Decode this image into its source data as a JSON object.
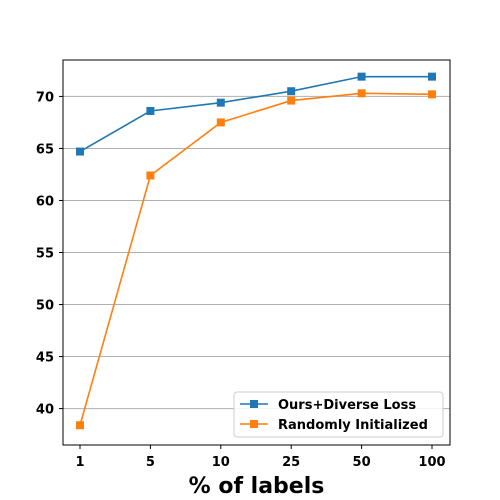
{
  "chart_data": {
    "type": "line",
    "title": "",
    "xlabel": "% of labels",
    "ylabel": "",
    "categories": [
      "1",
      "5",
      "10",
      "25",
      "50",
      "100"
    ],
    "ylim": [
      36.5,
      73.5
    ],
    "yticks": [
      40,
      45,
      50,
      55,
      60,
      65,
      70
    ],
    "grid": "horizontal",
    "legend_position": "lower-right",
    "series": [
      {
        "name": "Ours+Diverse Loss",
        "color": "#1f77b4",
        "marker": "square",
        "values": [
          64.7,
          68.6,
          69.4,
          70.5,
          71.9,
          71.9
        ]
      },
      {
        "name": "Randomly Initialized",
        "color": "#ff7f0e",
        "marker": "square",
        "values": [
          38.4,
          62.4,
          67.5,
          69.6,
          70.3,
          70.2
        ]
      }
    ]
  }
}
